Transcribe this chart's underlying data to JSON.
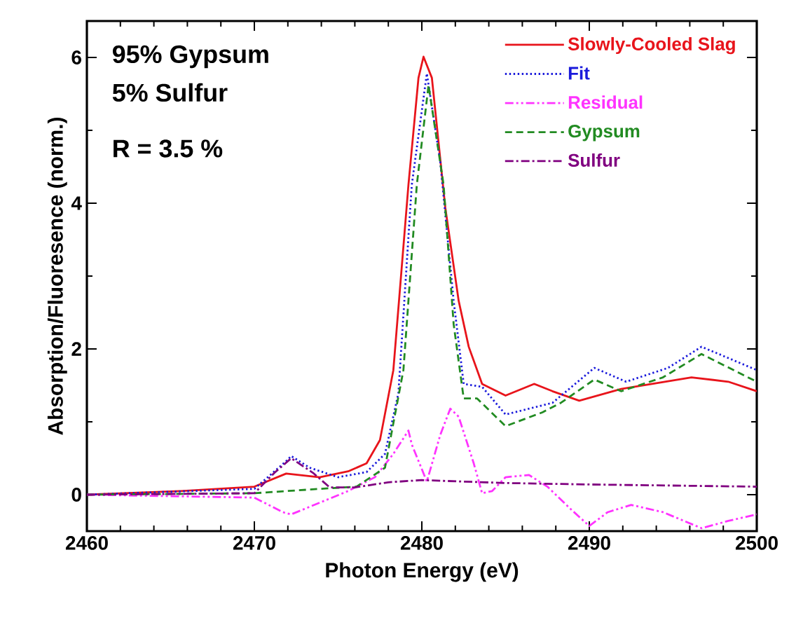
{
  "chart_data": {
    "type": "line",
    "xlabel": "Photon Energy (eV)",
    "ylabel": "Absorption/Fluoresence (norm.)",
    "xlim": [
      2460,
      2500
    ],
    "xticks": [
      2460,
      2470,
      2480,
      2490,
      2500
    ],
    "ylim": [
      -0.5,
      6.5
    ],
    "yticks": [
      0,
      2,
      4,
      6
    ],
    "grid": false,
    "legend": "top right",
    "marker": "none",
    "annotations": [
      "95% Gypsum",
      "5% Sulfur",
      "R = 3.5 %"
    ],
    "series": [
      {
        "name": "Slowly-Cooled Slag",
        "color": "#e8141b",
        "line_style": "solid",
        "x": [
          2460,
          2465.6,
          2470,
          2471.9,
          2473.9,
          2475.6,
          2476.7,
          2477.5,
          2478.3,
          2479.2,
          2479.8,
          2480.1,
          2480.6,
          2481.4,
          2482.2,
          2482.8,
          2483.6,
          2485.0,
          2486.7,
          2487.8,
          2489.4,
          2491.9,
          2496.1,
          2498.3,
          2500
        ],
        "values": [
          0,
          0.05,
          0.11,
          0.29,
          0.24,
          0.32,
          0.43,
          0.75,
          1.71,
          4.25,
          5.72,
          6.01,
          5.72,
          3.94,
          2.66,
          2.03,
          1.52,
          1.36,
          1.52,
          1.42,
          1.29,
          1.45,
          1.61,
          1.55,
          1.42
        ]
      },
      {
        "name": "Fit",
        "color": "#1a1adb",
        "line_style": "dotted",
        "x": [
          2460,
          2470,
          2471.9,
          2472.2,
          2473.3,
          2475,
          2476.7,
          2477.8,
          2478.6,
          2479.4,
          2480.3,
          2481.1,
          2481.9,
          2482.5,
          2483.6,
          2485,
          2487.8,
          2490.3,
          2492.2,
          2494.7,
          2496.7,
          2500
        ],
        "values": [
          0,
          0.08,
          0.46,
          0.53,
          0.37,
          0.24,
          0.31,
          0.56,
          1.39,
          4.25,
          5.78,
          4.57,
          2.66,
          1.52,
          1.48,
          1.1,
          1.26,
          1.74,
          1.55,
          1.74,
          2.03,
          1.71
        ]
      },
      {
        "name": "Residual",
        "color": "#ff33ff",
        "line_style": "dashdotdot",
        "x": [
          2460,
          2470,
          2471.7,
          2472.2,
          2473.9,
          2475.6,
          2477.2,
          2478.3,
          2479.2,
          2479.4,
          2480.3,
          2481.1,
          2481.7,
          2482.2,
          2483.1,
          2483.6,
          2484.2,
          2485,
          2486.4,
          2487.5,
          2488.9,
          2490,
          2491.1,
          2492.5,
          2494.4,
          2496.7,
          2498.3,
          2500
        ],
        "values": [
          0,
          -0.04,
          -0.24,
          -0.27,
          -0.11,
          0.05,
          0.24,
          0.56,
          0.88,
          0.69,
          0.18,
          0.82,
          1.18,
          1.07,
          0.43,
          0.02,
          0.05,
          0.24,
          0.27,
          0.11,
          -0.2,
          -0.43,
          -0.24,
          -0.14,
          -0.24,
          -0.46,
          -0.36,
          -0.27
        ]
      },
      {
        "name": "Gypsum",
        "color": "#228b22",
        "line_style": "dashed",
        "x": [
          2460,
          2470,
          2473.9,
          2476.1,
          2477.8,
          2478.9,
          2479.7,
          2480.4,
          2481.3,
          2481.9,
          2482.5,
          2483.3,
          2485,
          2487.2,
          2488.3,
          2490.3,
          2491.9,
          2494.4,
          2496.7,
          2500
        ],
        "values": [
          0,
          0.02,
          0.08,
          0.11,
          0.37,
          1.71,
          4.25,
          5.62,
          4.25,
          2.34,
          1.32,
          1.32,
          0.94,
          1.13,
          1.26,
          1.58,
          1.42,
          1.61,
          1.93,
          1.55
        ]
      },
      {
        "name": "Sulfur",
        "color": "#800080",
        "line_style": "dashdot",
        "x": [
          2460,
          2470,
          2471.2,
          2472.2,
          2473.5,
          2474.5,
          2476,
          2478,
          2480,
          2485,
          2490,
          2500
        ],
        "values": [
          0,
          0.02,
          0.3,
          0.5,
          0.3,
          0.1,
          0.1,
          0.17,
          0.2,
          0.16,
          0.14,
          0.11
        ]
      }
    ]
  }
}
